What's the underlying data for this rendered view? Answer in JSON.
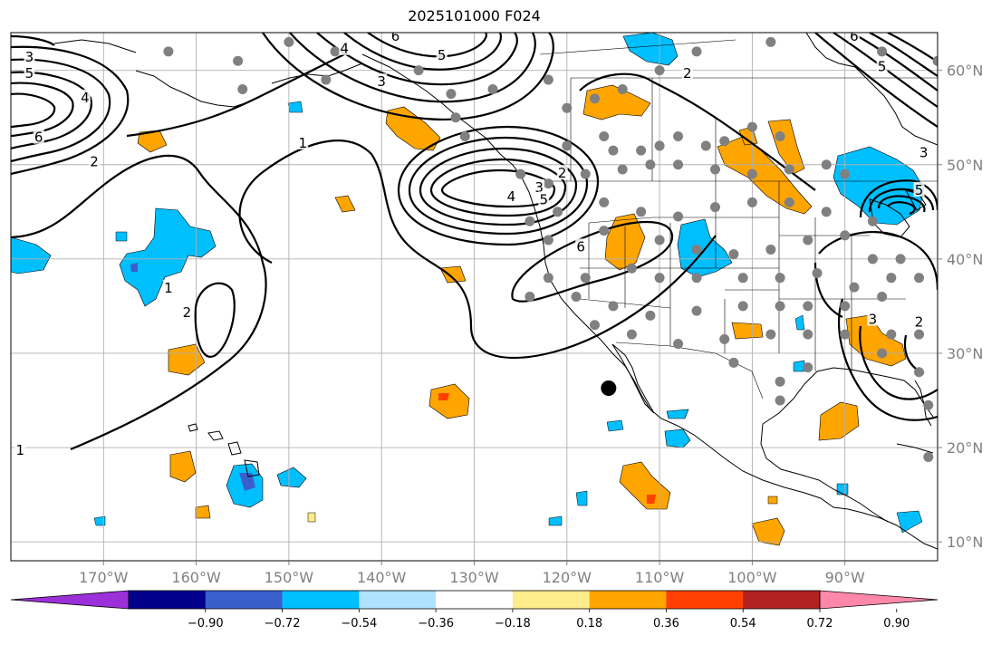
{
  "title": "2025101000 F024",
  "map": {
    "lon_range": [
      -180,
      -80
    ],
    "lat_range": [
      8,
      64
    ],
    "lon_ticks": [
      {
        "value": -170,
        "label": "170°W"
      },
      {
        "value": -160,
        "label": "160°W"
      },
      {
        "value": -150,
        "label": "150°W"
      },
      {
        "value": -140,
        "label": "140°W"
      },
      {
        "value": -130,
        "label": "130°W"
      },
      {
        "value": -120,
        "label": "120°W"
      },
      {
        "value": -110,
        "label": "110°W"
      },
      {
        "value": -100,
        "label": "100°W"
      },
      {
        "value": -90,
        "label": "90°W"
      }
    ],
    "lat_ticks": [
      {
        "value": 10,
        "label": "10°N"
      },
      {
        "value": 20,
        "label": "20°N"
      },
      {
        "value": 30,
        "label": "30°N"
      },
      {
        "value": 40,
        "label": "40°N"
      },
      {
        "value": 50,
        "label": "50°N"
      },
      {
        "value": 60,
        "label": "60°N"
      }
    ],
    "grid": true,
    "highlight_point": {
      "lon": -115.5,
      "lat": 26.3
    },
    "station_color": "#808080",
    "stations": [
      [
        -155.5,
        61
      ],
      [
        -150,
        63
      ],
      [
        -145,
        62
      ],
      [
        -136,
        60
      ],
      [
        -132.5,
        57.5
      ],
      [
        -128,
        58
      ],
      [
        -122,
        59
      ],
      [
        -120,
        56
      ],
      [
        -117,
        57
      ],
      [
        -114,
        58
      ],
      [
        -110,
        60
      ],
      [
        -106,
        62
      ],
      [
        -98,
        63
      ],
      [
        -86,
        62
      ],
      [
        -80,
        61
      ],
      [
        -163,
        62
      ],
      [
        -155,
        58
      ],
      [
        -146,
        59
      ],
      [
        -132,
        55
      ],
      [
        -131,
        53
      ],
      [
        -120,
        52
      ],
      [
        -116,
        53
      ],
      [
        -115,
        51.5
      ],
      [
        -112,
        51.5
      ],
      [
        -110,
        52
      ],
      [
        -108,
        53
      ],
      [
        -105,
        52
      ],
      [
        -103,
        52.5
      ],
      [
        -100,
        54
      ],
      [
        -97,
        53
      ],
      [
        -92,
        50
      ],
      [
        -125,
        49
      ],
      [
        -122,
        48
      ],
      [
        -118,
        49
      ],
      [
        -114,
        49.5
      ],
      [
        -111,
        50
      ],
      [
        -108,
        50
      ],
      [
        -104,
        49.5
      ],
      [
        -100,
        49
      ],
      [
        -96,
        49.5
      ],
      [
        -90,
        49
      ],
      [
        -124,
        44
      ],
      [
        -121,
        45
      ],
      [
        -116,
        46
      ],
      [
        -112,
        45
      ],
      [
        -108,
        44.5
      ],
      [
        -104,
        45.5
      ],
      [
        -100,
        46
      ],
      [
        -96,
        46
      ],
      [
        -92,
        45
      ],
      [
        -87,
        44
      ],
      [
        -122,
        42
      ],
      [
        -116,
        43
      ],
      [
        -110,
        42
      ],
      [
        -106,
        41
      ],
      [
        -102,
        40.5
      ],
      [
        -98,
        41
      ],
      [
        -94,
        42
      ],
      [
        -90,
        42.5
      ],
      [
        -87,
        40
      ],
      [
        -84,
        40
      ],
      [
        -122,
        38
      ],
      [
        -118,
        38
      ],
      [
        -113,
        39
      ],
      [
        -110,
        38
      ],
      [
        -106,
        38
      ],
      [
        -101,
        38
      ],
      [
        -97,
        38
      ],
      [
        -93,
        38.5
      ],
      [
        -89,
        37
      ],
      [
        -85,
        38
      ],
      [
        -82,
        38
      ],
      [
        -124,
        36
      ],
      [
        -119,
        36
      ],
      [
        -115,
        35
      ],
      [
        -111,
        34
      ],
      [
        -106,
        34.5
      ],
      [
        -101,
        35
      ],
      [
        -97,
        35
      ],
      [
        -94,
        35
      ],
      [
        -90,
        35
      ],
      [
        -86,
        36
      ],
      [
        -117,
        33
      ],
      [
        -113,
        32
      ],
      [
        -108,
        31
      ],
      [
        -103,
        31.5
      ],
      [
        -98,
        32
      ],
      [
        -94,
        32
      ],
      [
        -90,
        32
      ],
      [
        -85,
        32
      ],
      [
        -82,
        32
      ],
      [
        -102,
        29
      ],
      [
        -97,
        27
      ],
      [
        -94,
        28.5
      ],
      [
        -86,
        30
      ],
      [
        -82,
        28
      ],
      [
        -97,
        25
      ],
      [
        -81,
        24.5
      ],
      [
        -81,
        19
      ]
    ]
  },
  "contours": {
    "label_color": "#000000",
    "labels": [
      {
        "text": "3",
        "lon": -178,
        "lat": 61.3
      },
      {
        "text": "5",
        "lon": -178,
        "lat": 59.6
      },
      {
        "text": "4",
        "lon": -172,
        "lat": 57
      },
      {
        "text": "6",
        "lon": -177,
        "lat": 52.8
      },
      {
        "text": "2",
        "lon": -171,
        "lat": 50.2
      },
      {
        "text": "1",
        "lon": -148.5,
        "lat": 52.2
      },
      {
        "text": "3",
        "lon": -140,
        "lat": 58.7
      },
      {
        "text": "4",
        "lon": -144,
        "lat": 62.2
      },
      {
        "text": "6",
        "lon": -138.5,
        "lat": 63.5
      },
      {
        "text": "5",
        "lon": -133.5,
        "lat": 61.5
      },
      {
        "text": "2",
        "lon": -120.5,
        "lat": 49
      },
      {
        "text": "3",
        "lon": -123,
        "lat": 47.5
      },
      {
        "text": "4",
        "lon": -126,
        "lat": 46.5
      },
      {
        "text": "5",
        "lon": -122.5,
        "lat": 46.2
      },
      {
        "text": "2",
        "lon": -107,
        "lat": 59.6
      },
      {
        "text": "1",
        "lon": -163,
        "lat": 36.8
      },
      {
        "text": "2",
        "lon": -161,
        "lat": 34.2
      },
      {
        "text": "1",
        "lon": -179,
        "lat": 19.6
      },
      {
        "text": "6",
        "lon": -118.5,
        "lat": 41.2
      },
      {
        "text": "6",
        "lon": -89,
        "lat": 63.5
      },
      {
        "text": "5",
        "lon": -86,
        "lat": 60.3
      },
      {
        "text": "3",
        "lon": -81.5,
        "lat": 51.2
      },
      {
        "text": "5",
        "lon": -82,
        "lat": 47.2
      },
      {
        "text": "3",
        "lon": -87,
        "lat": 33.5
      },
      {
        "text": "2",
        "lon": -82,
        "lat": 33.2
      }
    ]
  },
  "colorbar": {
    "colors": [
      "#9b30d9",
      "#00008b",
      "#3a5fcd",
      "#00bfff",
      "#b0e2ff",
      "#ffffff",
      "#ffec8b",
      "#ffa500",
      "#ff4000",
      "#b22222",
      "#ff88aa"
    ],
    "ticks": [
      "−0.90",
      "−0.72",
      "−0.54",
      "−0.36",
      "−0.18",
      "0.18",
      "0.36",
      "0.54",
      "0.72",
      "0.90"
    ]
  },
  "anomalies": {
    "blue_color": "#00bfff",
    "dark_blue_color": "#3a5fcd",
    "orange_color": "#ffa500",
    "red_color": "#ff4000",
    "yellow_color": "#ffec8b"
  }
}
